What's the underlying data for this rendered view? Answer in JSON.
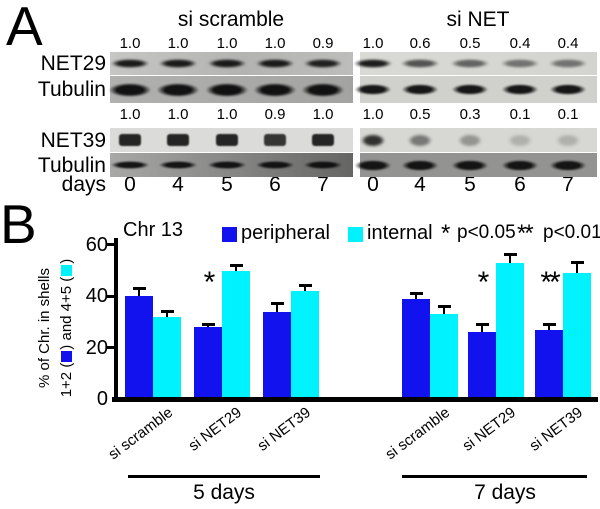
{
  "panel_a": {
    "label": "A",
    "headers": {
      "left": "si scramble",
      "right": "si NET"
    },
    "days_label": "days",
    "days": [
      "0",
      "4",
      "5",
      "6",
      "7"
    ],
    "blocks": [
      {
        "protein": "NET29",
        "loading": "Tubulin",
        "left_values": [
          "1.0",
          "1.0",
          "1.0",
          "1.0",
          "0.9"
        ],
        "right_values": [
          "1.0",
          "0.6",
          "0.5",
          "0.4",
          "0.4"
        ]
      },
      {
        "protein": "NET39",
        "loading": "Tubulin",
        "left_values": [
          "1.0",
          "1.0",
          "1.0",
          "0.9",
          "1.0"
        ],
        "right_values": [
          "1.0",
          "0.5",
          "0.3",
          "0.1",
          "0.1"
        ]
      }
    ]
  },
  "panel_b": {
    "label": "B",
    "title": "Chr 13",
    "legend": [
      {
        "label": "peripheral",
        "color": "#1212ee"
      },
      {
        "label": "internal",
        "color": "#00f2ff"
      }
    ],
    "sig_note": [
      {
        "symbol": "*",
        "text": "p<0.05"
      },
      {
        "symbol": "**",
        "text": "p<0.01"
      }
    ],
    "ylabel_line1": "% of Chr. in shells",
    "ylabel_line2": {
      "pre": "1+2 (",
      "mid": ") and 4+5 (",
      "post": ")"
    }
  },
  "chart_data": {
    "type": "bar",
    "title": "Chr 13",
    "ylabel": "% of Chr. in shells 1+2 and 4+5",
    "ylim": [
      0,
      60
    ],
    "yticks": [
      0,
      20,
      40,
      60
    ],
    "grid": false,
    "legend_position": "top",
    "groups": [
      "5 days",
      "7 days"
    ],
    "categories": [
      "si scramble",
      "si NET29",
      "si NET39",
      "si scramble",
      "si NET29",
      "si NET39"
    ],
    "category_groups": [
      "5 days",
      "5 days",
      "5 days",
      "7 days",
      "7 days",
      "7 days"
    ],
    "series": [
      {
        "name": "peripheral",
        "color": "#1212ee",
        "values": [
          40,
          28,
          34,
          39,
          26,
          27
        ],
        "errors": [
          3,
          1,
          3,
          2,
          3,
          2
        ]
      },
      {
        "name": "internal",
        "color": "#00f2ff",
        "values": [
          32,
          50,
          42,
          33,
          53,
          49
        ],
        "errors": [
          2,
          2,
          2,
          3,
          3,
          4
        ]
      }
    ],
    "significance": [
      "",
      "*",
      "",
      "",
      "*",
      "**"
    ],
    "significance_on": "peripheral"
  }
}
